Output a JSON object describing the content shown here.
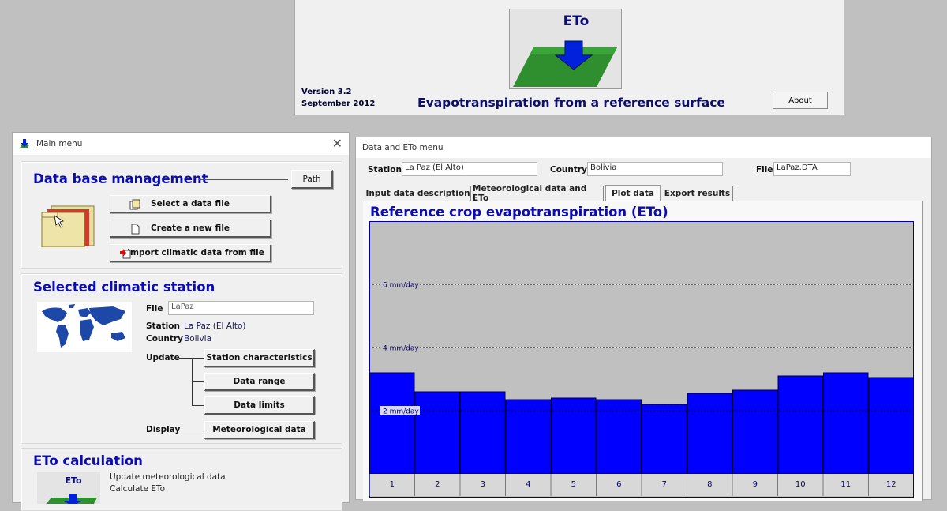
{
  "splash": {
    "logo_text": "ETo",
    "version": "Version 3.2",
    "date": "September 2012",
    "title": "Evapotranspiration from a reference surface",
    "about_button": "About"
  },
  "main_menu": {
    "window_title": "Main menu",
    "database": {
      "heading": "Data base management",
      "path_button": "Path",
      "buttons": [
        "Select a data file",
        "Create a new file",
        "Import climatic data from file"
      ]
    },
    "station": {
      "heading": "Selected climatic station",
      "file_label": "File",
      "file_value": "LaPaz",
      "station_label": "Station",
      "station_value": "La Paz (El Alto)",
      "country_label": "Country",
      "country_value": "Bolivia",
      "update_label": "Update",
      "update_buttons": [
        "Station characteristics",
        "Data range",
        "Data limits"
      ],
      "display_label": "Display",
      "display_button": "Meteorological data"
    },
    "eto_calc": {
      "heading": "ETo calculation",
      "logo_text": "ETo",
      "line1": "Update meteorological data",
      "line2": "Calculate ETo"
    }
  },
  "data_window": {
    "window_title": "Data and ETo menu",
    "station_label": "Station",
    "station_value": "La Paz (El Alto)",
    "country_label": "Country",
    "country_value": "Bolivia",
    "file_label": "File",
    "file_value": "LaPaz.DTA",
    "tabs": [
      "Input data description",
      "Meteorological data and ETo",
      "Plot data",
      "Export results"
    ],
    "active_tab": "Plot data",
    "plot_heading": "Reference crop evapotranspiration (ETo)"
  },
  "chart_data": {
    "type": "bar",
    "categories": [
      "1",
      "2",
      "3",
      "4",
      "5",
      "6",
      "7",
      "8",
      "9",
      "10",
      "11",
      "12"
    ],
    "values": [
      3.2,
      2.6,
      2.6,
      2.35,
      2.4,
      2.35,
      2.2,
      2.55,
      2.65,
      3.1,
      3.2,
      3.05
    ],
    "ylim": [
      0,
      8
    ],
    "gridlines": [
      {
        "value": 6,
        "label": "6 mm/day"
      },
      {
        "value": 4,
        "label": "4 mm/day"
      },
      {
        "value": 2,
        "label": "2 mm/day"
      }
    ],
    "bar_color": "#0000ff",
    "plot_background": "#c0c0c0"
  }
}
